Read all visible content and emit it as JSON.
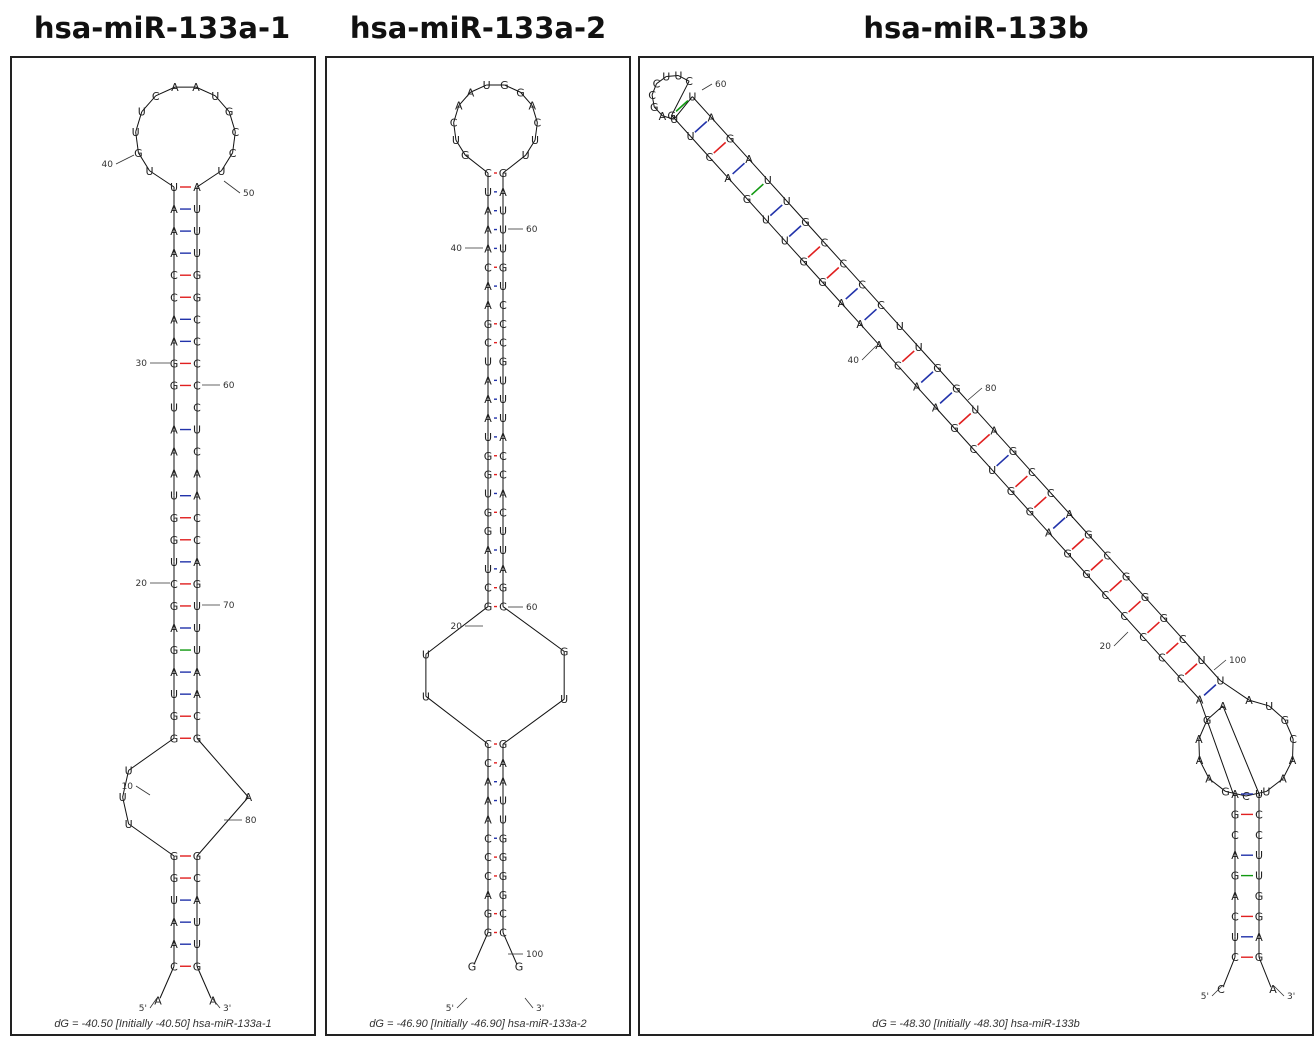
{
  "panels": [
    {
      "title": "hsa-miR-133a-1",
      "caption": "dG = -40.50 [Initially -40.50] hsa-miR-133a-1",
      "structure": {
        "loop": [
          "U",
          "G",
          "U",
          "U",
          "C",
          "A",
          "A",
          "U",
          "G",
          "C",
          "C",
          "U"
        ],
        "left": [
          "U",
          "A",
          "A",
          "A",
          "C",
          "C",
          "A",
          "A",
          "G",
          "G",
          "U",
          "A",
          "A",
          "A",
          "U",
          "G",
          "G",
          "U",
          "C",
          "G",
          "A",
          "G",
          "A",
          "U",
          "G",
          "G"
        ],
        "right": [
          "A",
          "U",
          "U",
          "U",
          "G",
          "G",
          "C",
          "C",
          "C",
          "C",
          "C",
          "U",
          "C",
          "A",
          "A",
          "C",
          "C",
          "A",
          "G",
          "U",
          "U",
          "U",
          "A",
          "A",
          "C",
          "G"
        ],
        "pairs": [
          "GC",
          "WC",
          "WC",
          "WC",
          "GC",
          "GC",
          "WC",
          "WC",
          "GC",
          "GC",
          "NO",
          "WC",
          "NO",
          "NO",
          "WC",
          "GC",
          "GC",
          "WC",
          "GC",
          "GC",
          "WC",
          "GU",
          "WC",
          "WC",
          "GC",
          "GC"
        ],
        "interior_left": [
          "U",
          "U",
          "U"
        ],
        "interior_right": [
          "A"
        ],
        "lower_left": [
          "G",
          "G",
          "U",
          "A",
          "A",
          "C"
        ],
        "lower_right": [
          "G",
          "C",
          "A",
          "U",
          "U",
          "G"
        ],
        "lower_pairs": [
          "GC",
          "GC",
          "WC",
          "WC",
          "WC",
          "GC"
        ],
        "tail5": "A",
        "tail3": "A",
        "labels": [
          {
            "text": "40"
          },
          {
            "text": "50"
          },
          {
            "text": "30"
          },
          {
            "text": "60"
          },
          {
            "text": "20"
          },
          {
            "text": "70"
          },
          {
            "text": "10"
          },
          {
            "text": "80"
          },
          {
            "text": "5'"
          },
          {
            "text": "3'"
          }
        ]
      }
    },
    {
      "title": "hsa-miR-133a-2",
      "caption": "dG = -46.90 [Initially -46.90] hsa-miR-133a-2",
      "structure": {
        "loop": [
          "G",
          "U",
          "C",
          "A",
          "A",
          "U",
          "G",
          "G",
          "A",
          "C",
          "U",
          "U"
        ],
        "left": [
          "C",
          "U",
          "A",
          "A",
          "A",
          "C",
          "A",
          "A",
          "G",
          "C",
          "U",
          "A",
          "A",
          "A",
          "U",
          "G",
          "G",
          "U",
          "G",
          "G",
          "A",
          "U",
          "C",
          "G"
        ],
        "right": [
          "G",
          "A",
          "U",
          "U",
          "U",
          "G",
          "U",
          "C",
          "C",
          "C",
          "G",
          "U",
          "U",
          "U",
          "A",
          "C",
          "C",
          "A",
          "C",
          "U",
          "U",
          "A",
          "G",
          "C"
        ],
        "pairs": [
          "GC",
          "WC",
          "WC",
          "WC",
          "WC",
          "GC",
          "WC",
          "NO",
          "GC",
          "GC",
          "NO",
          "WC",
          "WC",
          "WC",
          "WC",
          "GC",
          "GC",
          "WC",
          "GC",
          "NO",
          "WC",
          "WC",
          "GC",
          "GC"
        ],
        "interior_left": [
          "U",
          "U"
        ],
        "interior_right": [
          "G",
          "U"
        ],
        "lower_left": [
          "C",
          "C",
          "A",
          "A",
          "A",
          "C",
          "C",
          "C",
          "A",
          "G",
          "G"
        ],
        "lower_right": [
          "G",
          "A",
          "A",
          "U",
          "U",
          "G",
          "G",
          "G",
          "G",
          "C",
          "C"
        ],
        "lower_pairs": [
          "GC",
          "GC",
          "WC",
          "WC",
          "NO",
          "WC",
          "GC",
          "GC",
          "NO",
          "GC",
          "GC"
        ],
        "tail5": "G",
        "tail3": "G",
        "labels": [
          {
            "text": "60"
          },
          {
            "text": "40"
          },
          {
            "text": "60"
          },
          {
            "text": "20"
          },
          {
            "text": "100"
          },
          {
            "text": "5'"
          },
          {
            "text": "3'"
          }
        ]
      }
    },
    {
      "title": "hsa-miR-133b",
      "caption": "dG = -48.30 [Initially -48.30] hsa-miR-133b",
      "structure": {
        "loop": [
          "C",
          "U",
          "U",
          "C",
          "C",
          "G",
          "A",
          "U"
        ],
        "left": [
          "G",
          "U",
          "C",
          "A",
          "G",
          "U",
          "U",
          "G",
          "G",
          "A",
          "A",
          "A",
          "C",
          "A",
          "A",
          "G",
          "C",
          "U",
          "G",
          "G",
          "A",
          "G",
          "G",
          "C",
          "C",
          "C",
          "C",
          "C",
          "A"
        ],
        "right": [
          "U",
          "A",
          "G",
          "A",
          "U",
          "U",
          "G",
          "C",
          "C",
          "C",
          "C",
          "U",
          "U",
          "G",
          "G",
          "U",
          "A",
          "G",
          "C",
          "C",
          "A",
          "G",
          "C",
          "G",
          "G",
          "G",
          "C",
          "U",
          "U"
        ],
        "pairs": [
          "GU",
          "WC",
          "GC",
          "WC",
          "GU",
          "WC",
          "WC",
          "GC",
          "GC",
          "WC",
          "WC",
          "NO",
          "GC",
          "WC",
          "WC",
          "GC",
          "GC",
          "WC",
          "GC",
          "GC",
          "WC",
          "GC",
          "GC",
          "GC",
          "GC",
          "GC",
          "GC",
          "GC",
          "WC"
        ],
        "big_loop": [
          "A",
          "U",
          "G",
          "C",
          "A",
          "A",
          "U",
          "C",
          "G",
          "A",
          "A",
          "A",
          "G",
          "A"
        ],
        "lower_left": [
          "A",
          "G",
          "C",
          "A",
          "G",
          "A",
          "C",
          "U",
          "C"
        ],
        "lower_right": [
          "U",
          "C",
          "C",
          "U",
          "U",
          "G",
          "G",
          "A",
          "G"
        ],
        "lower_pairs": [
          "WC",
          "GC",
          "NO",
          "WC",
          "GU",
          "NO",
          "GC",
          "WC",
          "GC"
        ],
        "tail5": "C",
        "tail3": "A",
        "labels": [
          {
            "text": "60"
          },
          {
            "text": "40"
          },
          {
            "text": "80"
          },
          {
            "text": "20"
          },
          {
            "text": "100"
          },
          {
            "text": "5'"
          },
          {
            "text": "3'"
          }
        ]
      }
    }
  ],
  "colors": {
    "gc_pair": "#e02020",
    "au_pair": "#2233aa",
    "gu_pair": "#119911",
    "backbone": "#111111"
  }
}
